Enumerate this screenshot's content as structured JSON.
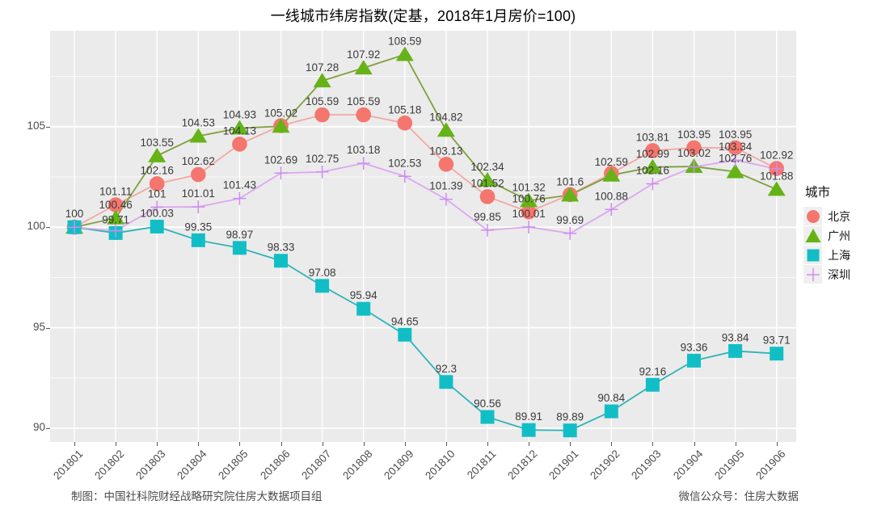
{
  "title": "一线城市纬房指数(定基，2018年1月房价=100)",
  "legend_title": "城市",
  "footer": {
    "left": "制图：中国社科院财经战略研究院住房大数据项目组",
    "right": "微信公众号：住房大数据"
  },
  "colors": {
    "panel_background": "#EBEBEB",
    "gridline": "#FFFFFF",
    "axis_text": "#4d4d4d",
    "label_text": "#3a3a3a"
  },
  "chart_data": {
    "type": "line",
    "title": "一线城市纬房指数(定基，2018年1月房价=100)",
    "xlabel": "",
    "ylabel": "",
    "grid": true,
    "legend_position": "right",
    "y_ticks": [
      90,
      95,
      100,
      105
    ],
    "y_minor_ticks": [
      92.5,
      97.5,
      102.5,
      107.5
    ],
    "ylim": [
      89.3,
      109.8
    ],
    "categories": [
      "201801",
      "201802",
      "201803",
      "201804",
      "201805",
      "201806",
      "201807",
      "201808",
      "201809",
      "201810",
      "201811",
      "201812",
      "201901",
      "201902",
      "201903",
      "201904",
      "201905",
      "201906"
    ],
    "series": [
      {
        "name": "北京",
        "marker": "circle",
        "marker_color": "#F4766E",
        "line_color": "#F2A8A2",
        "values": [
          100,
          101.11,
          102.16,
          102.62,
          104.13,
          105.05,
          105.59,
          105.59,
          105.18,
          103.13,
          101.52,
          100.76,
          101.62,
          102.68,
          103.81,
          103.95,
          103.95,
          102.92
        ],
        "labels": [
          "100",
          "101.11",
          "102.16",
          "102.62",
          "104.13",
          "",
          "105.59",
          "105.59",
          "105.18",
          "103.13",
          "101.52",
          "100.76",
          "",
          "",
          "103.81",
          "103.95",
          "103.95",
          "102.92"
        ]
      },
      {
        "name": "广州",
        "marker": "triangle",
        "marker_color": "#65B317",
        "line_color": "#7FA03C",
        "values": [
          100,
          100.46,
          103.55,
          104.53,
          104.93,
          105.02,
          107.28,
          107.92,
          108.59,
          104.82,
          102.34,
          101.32,
          101.6,
          102.59,
          102.99,
          103.02,
          102.76,
          101.88
        ],
        "labels": [
          "",
          "100.46",
          "103.55",
          "104.53",
          "104.93",
          "105.02",
          "107.28",
          "107.92",
          "108.59",
          "104.82",
          "102.34",
          "101.32",
          "101.6",
          "102.59",
          "102.99",
          "103.02",
          "102.76",
          "101.88"
        ]
      },
      {
        "name": "上海",
        "marker": "square",
        "marker_color": "#12BEC6",
        "line_color": "#2FB3B8",
        "values": [
          100,
          99.71,
          100.03,
          99.35,
          98.97,
          98.33,
          97.08,
          95.94,
          94.65,
          92.3,
          90.56,
          89.91,
          89.89,
          90.84,
          92.16,
          93.36,
          93.84,
          93.71
        ],
        "labels": [
          "",
          "99.71",
          "100.03",
          "99.35",
          "98.97",
          "98.33",
          "97.08",
          "95.94",
          "94.65",
          "92.3",
          "90.56",
          "89.91",
          "89.89",
          "90.84",
          "92.16",
          "93.36",
          "93.84",
          "93.71"
        ]
      },
      {
        "name": "深圳",
        "marker": "cross",
        "marker_color": "#CF8CF2",
        "line_color": "#DCA8EE",
        "values": [
          100,
          99.82,
          101,
          101.01,
          101.43,
          102.69,
          102.75,
          103.18,
          102.53,
          101.39,
          99.85,
          100.01,
          99.69,
          100.88,
          102.16,
          103.0,
          103.34,
          102.9
        ],
        "labels": [
          "",
          "",
          "101",
          "101.01",
          "101.43",
          "102.69",
          "102.75",
          "103.18",
          "102.53",
          "101.39",
          "99.85",
          "100.01",
          "99.69",
          "100.88",
          "102.16",
          "",
          "103.34",
          ""
        ]
      }
    ]
  }
}
